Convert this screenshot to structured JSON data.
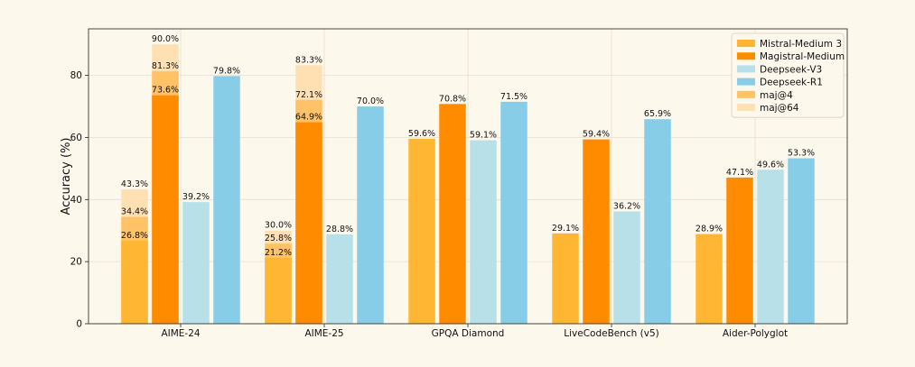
{
  "chart_data": {
    "type": "bar",
    "title": "",
    "xlabel": "",
    "ylabel": "Accuracy (%)",
    "ylim": [
      0,
      95
    ],
    "yticks": [
      0,
      20,
      40,
      60,
      80
    ],
    "grid": "on",
    "legend_position": "top-right",
    "categories": [
      "AIME-24",
      "AIME-25",
      "GPQA Diamond",
      "LiveCodeBench (v5)",
      "Aider-Polyglot"
    ],
    "series": [
      {
        "name": "Mistral-Medium 3",
        "color": "#ffb733",
        "values": [
          26.8,
          21.2,
          59.6,
          29.1,
          28.9
        ]
      },
      {
        "name": "Magistral-Medium",
        "color": "#ff8c00",
        "values": [
          73.6,
          64.9,
          70.8,
          59.4,
          47.1
        ]
      },
      {
        "name": "Deepseek-V3",
        "color": "#b8e0e9",
        "values": [
          39.2,
          28.8,
          59.1,
          36.2,
          49.6
        ]
      },
      {
        "name": "Deepseek-R1",
        "color": "#88cde8",
        "values": [
          79.8,
          70.0,
          71.5,
          65.9,
          53.3
        ]
      }
    ],
    "overlays": [
      {
        "name": "maj@4",
        "color": "#ffc266",
        "values": {
          "Mistral-Medium 3": [
            34.4,
            25.8
          ],
          "Magistral-Medium": [
            81.3,
            72.1
          ]
        }
      },
      {
        "name": "maj@64",
        "color": "#ffe0b3",
        "values": {
          "Mistral-Medium 3": [
            43.3,
            30.0
          ],
          "Magistral-Medium": [
            90.0,
            83.3
          ]
        }
      }
    ],
    "legend": [
      "Mistral-Medium 3",
      "Magistral-Medium",
      "Deepseek-V3",
      "Deepseek-R1",
      "maj@4",
      "maj@64"
    ]
  }
}
